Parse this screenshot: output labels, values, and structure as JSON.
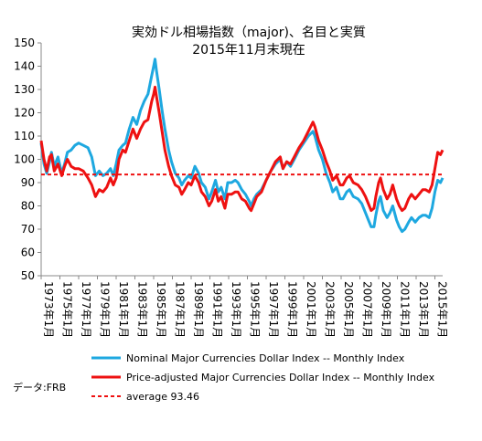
{
  "chart_data": {
    "type": "line",
    "title": "実効ドル相場指数（major)、名目と実質",
    "subtitle": "2015年11月末現在",
    "ylim": [
      50,
      150
    ],
    "y_ticks": [
      "50",
      "60",
      "70",
      "80",
      "90",
      "100",
      "110",
      "120",
      "130",
      "140",
      "150"
    ],
    "x_tick_labels": [
      "1973年1月",
      "1975年1月",
      "1977年1月",
      "1979年1月",
      "1981年1月",
      "1983年1月",
      "1985年1月",
      "1987年1月",
      "1989年1月",
      "1991年1月",
      "1993年1月",
      "1995年1月",
      "1997年1月",
      "1999年1月",
      "2001年1月",
      "2003年1月",
      "2005年1月",
      "2007年1月",
      "2009年1月",
      "2011年1月",
      "2013年1月",
      "2015年1月"
    ],
    "x_range": [
      1973.0,
      2015.83
    ],
    "grid": false,
    "legend_position": "bottom",
    "source": "データ:FRB",
    "series": [
      {
        "name": "Nominal Major Currencies Dollar Index -- Monthly Index",
        "color": "#1ea8e0",
        "points": [
          [
            1973.0,
            107
          ],
          [
            1973.3,
            98
          ],
          [
            1973.6,
            94
          ],
          [
            1973.9,
            99
          ],
          [
            1974.1,
            103
          ],
          [
            1974.4,
            97
          ],
          [
            1974.8,
            101
          ],
          [
            1975.2,
            94
          ],
          [
            1975.5,
            98
          ],
          [
            1975.8,
            103
          ],
          [
            1976.2,
            104
          ],
          [
            1976.6,
            106
          ],
          [
            1977.0,
            107
          ],
          [
            1977.5,
            106
          ],
          [
            1978.0,
            105
          ],
          [
            1978.4,
            101
          ],
          [
            1978.8,
            93
          ],
          [
            1979.2,
            95
          ],
          [
            1979.6,
            93
          ],
          [
            1980.0,
            94
          ],
          [
            1980.4,
            96
          ],
          [
            1980.7,
            93
          ],
          [
            1981.0,
            98
          ],
          [
            1981.3,
            104
          ],
          [
            1981.7,
            106
          ],
          [
            1982.0,
            107
          ],
          [
            1982.4,
            113
          ],
          [
            1982.8,
            118
          ],
          [
            1983.2,
            115
          ],
          [
            1983.6,
            121
          ],
          [
            1984.0,
            125
          ],
          [
            1984.4,
            128
          ],
          [
            1984.8,
            136
          ],
          [
            1985.0,
            140
          ],
          [
            1985.15,
            143
          ],
          [
            1985.3,
            138
          ],
          [
            1985.6,
            130
          ],
          [
            1985.9,
            121
          ],
          [
            1986.2,
            113
          ],
          [
            1986.6,
            104
          ],
          [
            1986.9,
            99
          ],
          [
            1987.3,
            94
          ],
          [
            1987.7,
            92
          ],
          [
            1988.0,
            89
          ],
          [
            1988.3,
            91
          ],
          [
            1988.7,
            93
          ],
          [
            1989.0,
            92
          ],
          [
            1989.4,
            97
          ],
          [
            1989.8,
            94
          ],
          [
            1990.1,
            90
          ],
          [
            1990.5,
            88
          ],
          [
            1990.9,
            83
          ],
          [
            1991.2,
            86
          ],
          [
            1991.6,
            91
          ],
          [
            1991.9,
            86
          ],
          [
            1992.2,
            88
          ],
          [
            1992.6,
            83
          ],
          [
            1992.9,
            90
          ],
          [
            1993.3,
            90
          ],
          [
            1993.7,
            91
          ],
          [
            1994.0,
            90
          ],
          [
            1994.4,
            87
          ],
          [
            1994.8,
            85
          ],
          [
            1995.2,
            82
          ],
          [
            1995.4,
            80
          ],
          [
            1995.7,
            83
          ],
          [
            1996.0,
            85
          ],
          [
            1996.5,
            87
          ],
          [
            1997.0,
            91
          ],
          [
            1997.5,
            95
          ],
          [
            1998.0,
            98
          ],
          [
            1998.5,
            100
          ],
          [
            1998.8,
            96
          ],
          [
            1999.2,
            99
          ],
          [
            1999.6,
            97
          ],
          [
            2000.0,
            100
          ],
          [
            2000.5,
            104
          ],
          [
            2001.0,
            107
          ],
          [
            2001.5,
            110
          ],
          [
            2002.0,
            112
          ],
          [
            2002.2,
            110
          ],
          [
            2002.6,
            104
          ],
          [
            2003.0,
            100
          ],
          [
            2003.4,
            94
          ],
          [
            2003.8,
            90
          ],
          [
            2004.1,
            86
          ],
          [
            2004.5,
            88
          ],
          [
            2004.9,
            83
          ],
          [
            2005.2,
            83
          ],
          [
            2005.6,
            86
          ],
          [
            2005.9,
            87
          ],
          [
            2006.3,
            84
          ],
          [
            2006.8,
            83
          ],
          [
            2007.2,
            81
          ],
          [
            2007.6,
            77
          ],
          [
            2007.9,
            74
          ],
          [
            2008.2,
            71
          ],
          [
            2008.5,
            71
          ],
          [
            2008.7,
            76
          ],
          [
            2009.0,
            82
          ],
          [
            2009.2,
            84
          ],
          [
            2009.5,
            78
          ],
          [
            2009.9,
            75
          ],
          [
            2010.2,
            77
          ],
          [
            2010.5,
            80
          ],
          [
            2010.9,
            74
          ],
          [
            2011.2,
            71
          ],
          [
            2011.5,
            69
          ],
          [
            2011.8,
            70
          ],
          [
            2012.2,
            73
          ],
          [
            2012.5,
            75
          ],
          [
            2012.9,
            73
          ],
          [
            2013.3,
            75
          ],
          [
            2013.7,
            76
          ],
          [
            2014.0,
            76
          ],
          [
            2014.4,
            75
          ],
          [
            2014.7,
            79
          ],
          [
            2015.0,
            86
          ],
          [
            2015.3,
            91
          ],
          [
            2015.6,
            90
          ],
          [
            2015.83,
            92
          ]
        ]
      },
      {
        "name": "Price-adjusted Major Currencies Dollar Index -- Monthly Index",
        "color": "#ee1111",
        "points": [
          [
            1973.0,
            108
          ],
          [
            1973.3,
            100
          ],
          [
            1973.6,
            95
          ],
          [
            1973.9,
            101
          ],
          [
            1974.1,
            102
          ],
          [
            1974.4,
            95
          ],
          [
            1974.8,
            98
          ],
          [
            1975.2,
            93
          ],
          [
            1975.5,
            97
          ],
          [
            1975.8,
            100
          ],
          [
            1976.2,
            97
          ],
          [
            1976.6,
            96
          ],
          [
            1977.0,
            96
          ],
          [
            1977.5,
            95
          ],
          [
            1978.0,
            92
          ],
          [
            1978.4,
            89
          ],
          [
            1978.8,
            84
          ],
          [
            1979.2,
            87
          ],
          [
            1979.6,
            86
          ],
          [
            1980.0,
            88
          ],
          [
            1980.4,
            92
          ],
          [
            1980.7,
            89
          ],
          [
            1981.0,
            92
          ],
          [
            1981.3,
            100
          ],
          [
            1981.7,
            104
          ],
          [
            1982.0,
            103
          ],
          [
            1982.4,
            108
          ],
          [
            1982.8,
            113
          ],
          [
            1983.2,
            109
          ],
          [
            1983.6,
            113
          ],
          [
            1984.0,
            116
          ],
          [
            1984.4,
            117
          ],
          [
            1984.8,
            125
          ],
          [
            1985.0,
            128
          ],
          [
            1985.15,
            131
          ],
          [
            1985.3,
            127
          ],
          [
            1985.6,
            120
          ],
          [
            1985.9,
            112
          ],
          [
            1986.2,
            104
          ],
          [
            1986.6,
            97
          ],
          [
            1986.9,
            93
          ],
          [
            1987.3,
            89
          ],
          [
            1987.7,
            88
          ],
          [
            1988.0,
            85
          ],
          [
            1988.3,
            87
          ],
          [
            1988.7,
            90
          ],
          [
            1989.0,
            89
          ],
          [
            1989.4,
            93
          ],
          [
            1989.8,
            90
          ],
          [
            1990.1,
            86
          ],
          [
            1990.5,
            84
          ],
          [
            1990.9,
            80
          ],
          [
            1991.2,
            82
          ],
          [
            1991.6,
            87
          ],
          [
            1991.9,
            82
          ],
          [
            1992.2,
            84
          ],
          [
            1992.6,
            79
          ],
          [
            1992.9,
            85
          ],
          [
            1993.3,
            85
          ],
          [
            1993.7,
            86
          ],
          [
            1994.0,
            86
          ],
          [
            1994.4,
            83
          ],
          [
            1994.8,
            82
          ],
          [
            1995.2,
            79
          ],
          [
            1995.4,
            78
          ],
          [
            1995.7,
            81
          ],
          [
            1996.0,
            84
          ],
          [
            1996.5,
            86
          ],
          [
            1997.0,
            91
          ],
          [
            1997.5,
            95
          ],
          [
            1998.0,
            99
          ],
          [
            1998.5,
            101
          ],
          [
            1998.8,
            96
          ],
          [
            1999.2,
            99
          ],
          [
            1999.6,
            98
          ],
          [
            2000.0,
            101
          ],
          [
            2000.5,
            105
          ],
          [
            2001.0,
            108
          ],
          [
            2001.5,
            112
          ],
          [
            2002.0,
            116
          ],
          [
            2002.2,
            114
          ],
          [
            2002.6,
            108
          ],
          [
            2003.0,
            104
          ],
          [
            2003.4,
            99
          ],
          [
            2003.8,
            95
          ],
          [
            2004.1,
            91
          ],
          [
            2004.5,
            93
          ],
          [
            2004.9,
            89
          ],
          [
            2005.2,
            89
          ],
          [
            2005.6,
            92
          ],
          [
            2005.9,
            93
          ],
          [
            2006.3,
            90
          ],
          [
            2006.8,
            89
          ],
          [
            2007.2,
            87
          ],
          [
            2007.6,
            84
          ],
          [
            2007.9,
            81
          ],
          [
            2008.2,
            78
          ],
          [
            2008.5,
            79
          ],
          [
            2008.7,
            84
          ],
          [
            2009.0,
            90
          ],
          [
            2009.2,
            92
          ],
          [
            2009.5,
            87
          ],
          [
            2009.9,
            83
          ],
          [
            2010.2,
            85
          ],
          [
            2010.5,
            89
          ],
          [
            2010.9,
            83
          ],
          [
            2011.2,
            80
          ],
          [
            2011.5,
            78
          ],
          [
            2011.8,
            79
          ],
          [
            2012.2,
            83
          ],
          [
            2012.5,
            85
          ],
          [
            2012.9,
            83
          ],
          [
            2013.3,
            85
          ],
          [
            2013.7,
            87
          ],
          [
            2014.0,
            87
          ],
          [
            2014.4,
            86
          ],
          [
            2014.7,
            89
          ],
          [
            2015.0,
            96
          ],
          [
            2015.3,
            103
          ],
          [
            2015.6,
            102
          ],
          [
            2015.83,
            104
          ]
        ]
      },
      {
        "name": "average 93.46",
        "color": "#ee1111",
        "dashed": true,
        "value": 93.46
      }
    ]
  }
}
